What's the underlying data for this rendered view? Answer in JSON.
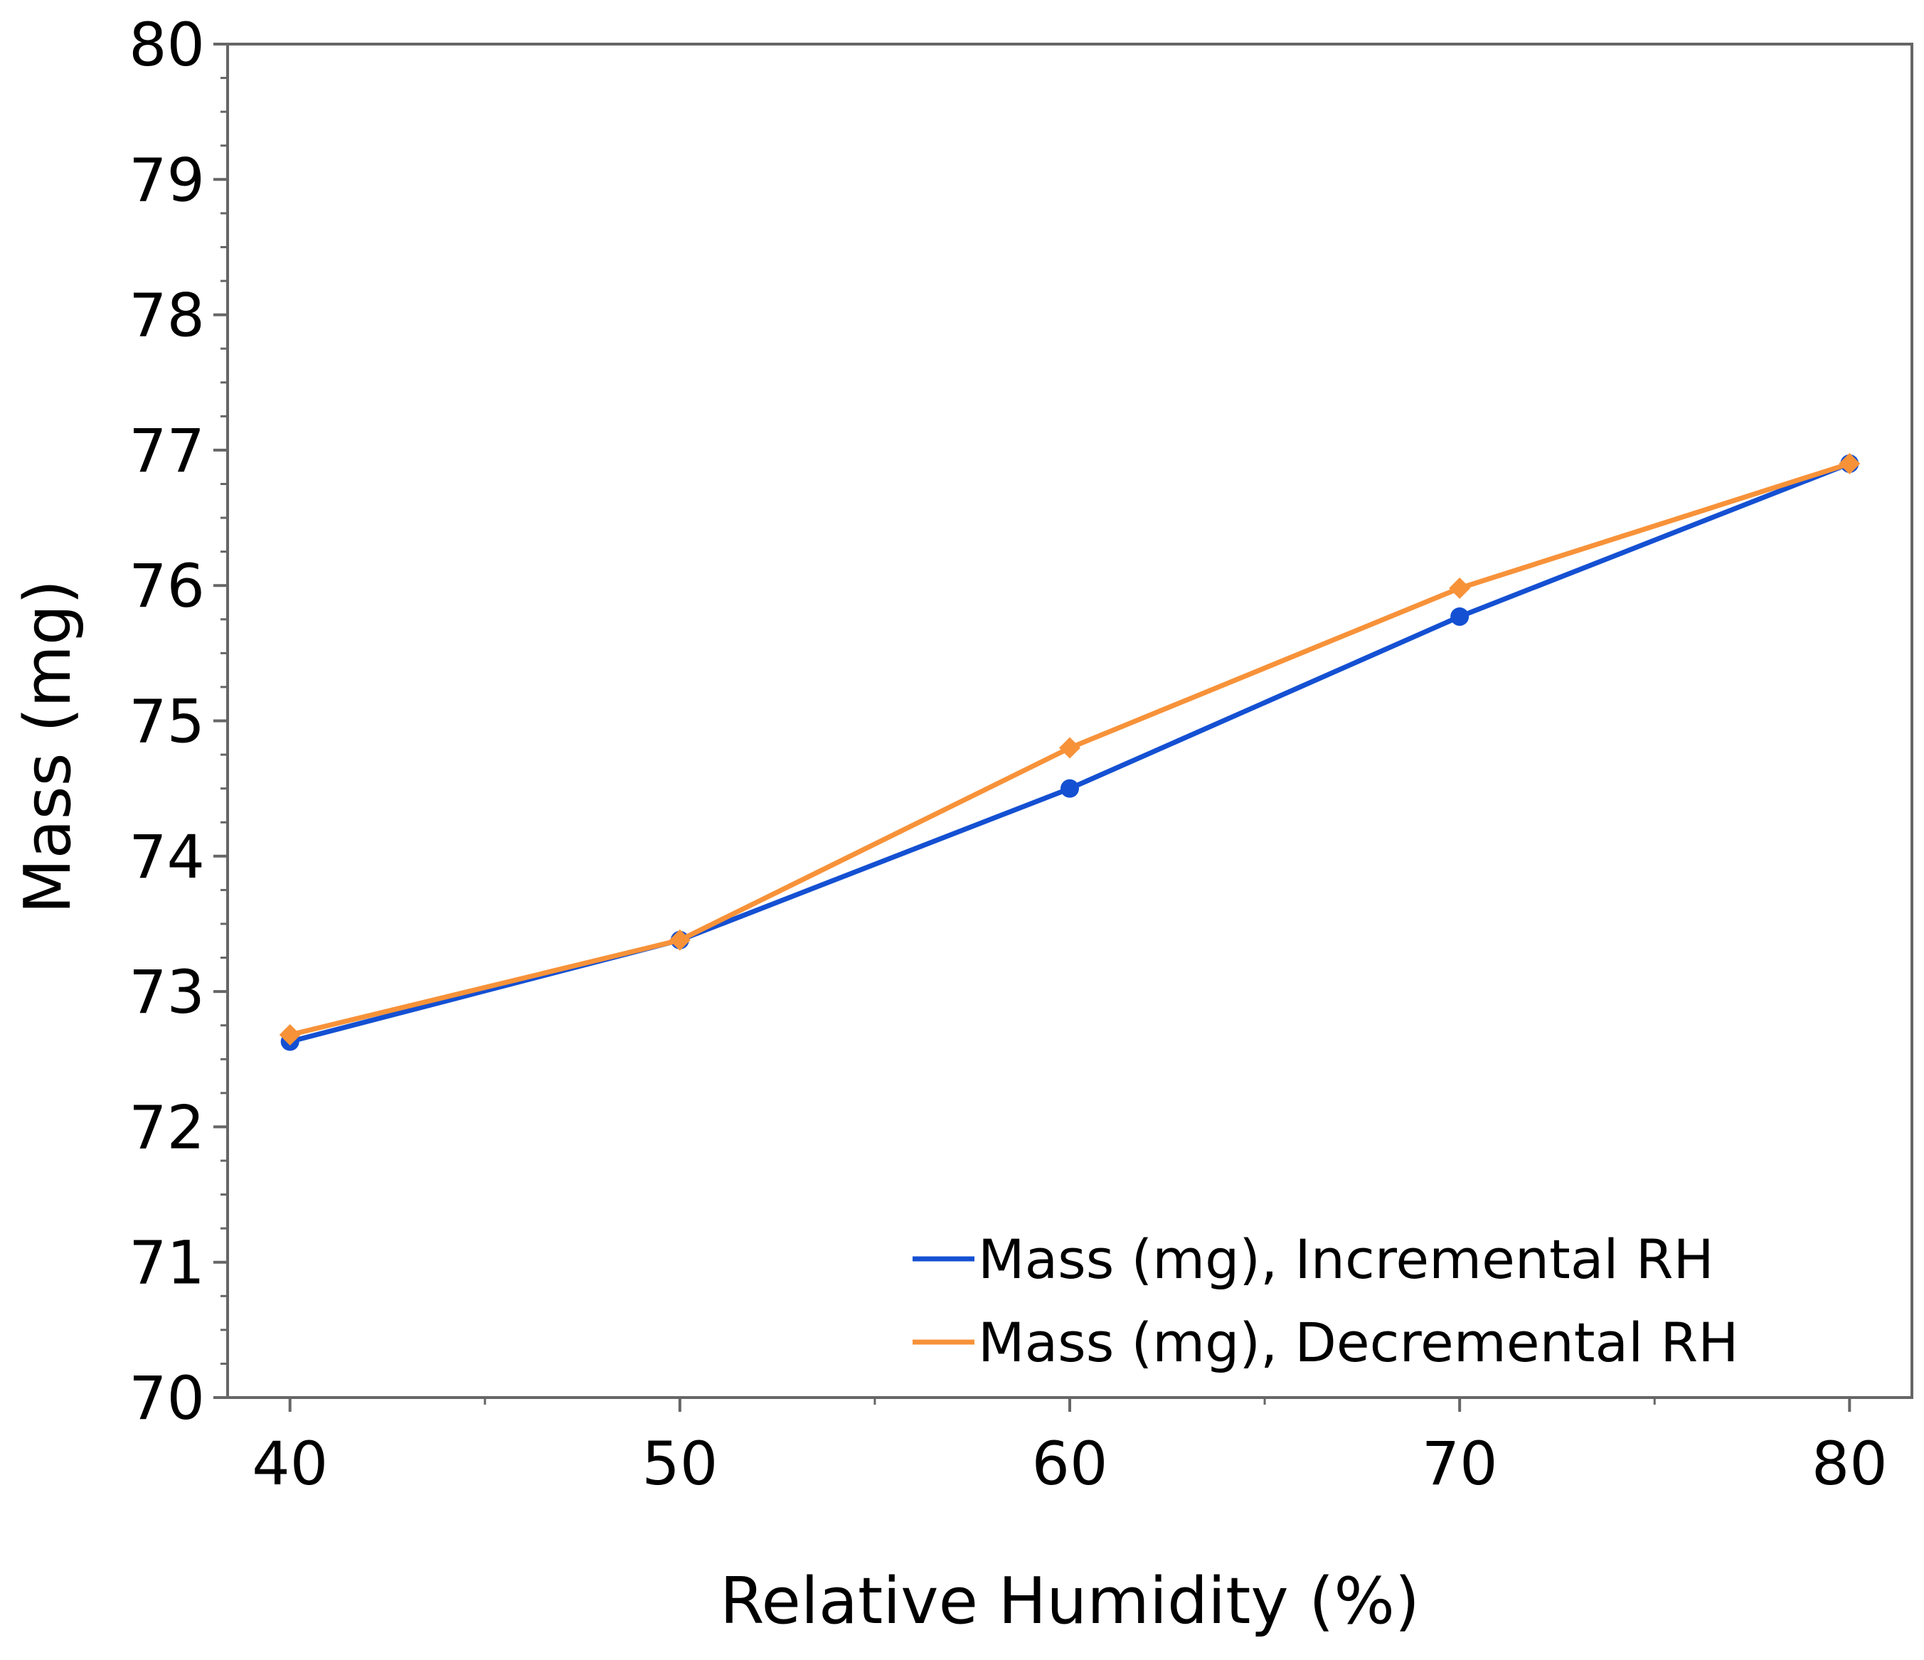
{
  "chart_data": {
    "type": "line",
    "xlabel": "Relative Humidity (%)",
    "ylabel": "Mass (mg)",
    "x": [
      40,
      50,
      60,
      70,
      80
    ],
    "xlim": [
      38.4,
      81.6
    ],
    "ylim": [
      70,
      80
    ],
    "xticks": [
      "40",
      "50",
      "60",
      "70",
      "80"
    ],
    "yticks": [
      "70",
      "71",
      "72",
      "73",
      "74",
      "75",
      "76",
      "77",
      "78",
      "79",
      "80"
    ],
    "grid": false,
    "legend_position": "bottom-right",
    "series": [
      {
        "name": "Mass (mg), Incremental RH",
        "values": [
          72.63,
          73.38,
          74.5,
          75.77,
          76.9
        ],
        "color": "#1450d2",
        "marker": "circle"
      },
      {
        "name": "Mass (mg), Decremental RH",
        "values": [
          72.68,
          73.38,
          74.8,
          75.98,
          76.9
        ],
        "color": "#f79239",
        "marker": "diamond"
      }
    ]
  }
}
